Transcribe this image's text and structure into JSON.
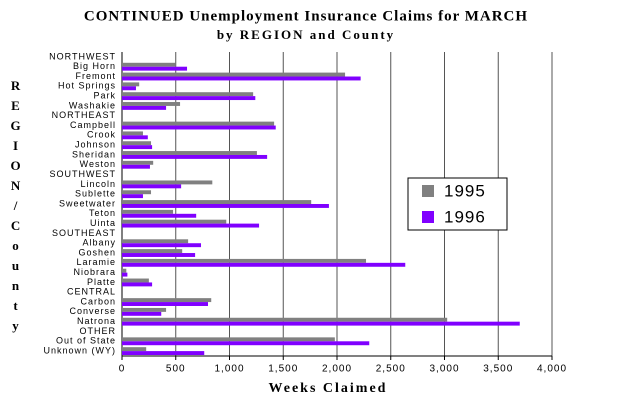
{
  "chart_data": {
    "type": "barh",
    "title": "CONTINUED Unemployment Insurance Claims for MARCH",
    "subtitle": "by REGION and County",
    "x_label": "Weeks Claimed",
    "y_label": "REGION/County",
    "categories": [
      "NORTHWEST",
      "Big Horn",
      "Fremont",
      "Hot Springs",
      "Park",
      "Washakie",
      "NORTHEAST",
      "Campbell",
      "Crook",
      "Johnson",
      "Sheridan",
      "Weston",
      "SOUTHWEST",
      "Lincoln",
      "Sublette",
      "Sweetwater",
      "Teton",
      "Uinta",
      "SOUTHEAST",
      "Albany",
      "Goshen",
      "Laramie",
      "Niobrara",
      "Platte",
      "CENTRAL",
      "Carbon",
      "Converse",
      "Natrona",
      "OTHER",
      "Out of State",
      "Unknown (WY)"
    ],
    "series": [
      {
        "name": "1995",
        "color": "#808080",
        "values": [
          null,
          500,
          2075,
          160,
          1220,
          540,
          null,
          1415,
          195,
          270,
          1255,
          290,
          null,
          840,
          270,
          1760,
          475,
          970,
          null,
          615,
          560,
          2270,
          40,
          250,
          null,
          830,
          410,
          3025,
          null,
          1980,
          225
        ]
      },
      {
        "name": "1996",
        "color": "#8000ff",
        "values": [
          null,
          605,
          2220,
          130,
          1240,
          410,
          null,
          1430,
          240,
          280,
          1350,
          260,
          null,
          550,
          195,
          1925,
          690,
          1275,
          null,
          735,
          680,
          2635,
          50,
          280,
          null,
          800,
          365,
          3700,
          null,
          2300,
          765
        ]
      }
    ],
    "xlim": [
      0,
      4000
    ],
    "xticks": [
      0,
      500,
      {
        "value": 1000,
        "label": "1,000"
      },
      {
        "value": 1500,
        "label": "1,500"
      },
      {
        "value": 2000,
        "label": "2,000"
      },
      {
        "value": 2500,
        "label": "2,500"
      },
      {
        "value": 3000,
        "label": "3,000"
      },
      {
        "value": 3500,
        "label": "3,500"
      },
      {
        "value": 4000,
        "label": "4,000"
      }
    ],
    "grid": true,
    "legend": "right"
  }
}
